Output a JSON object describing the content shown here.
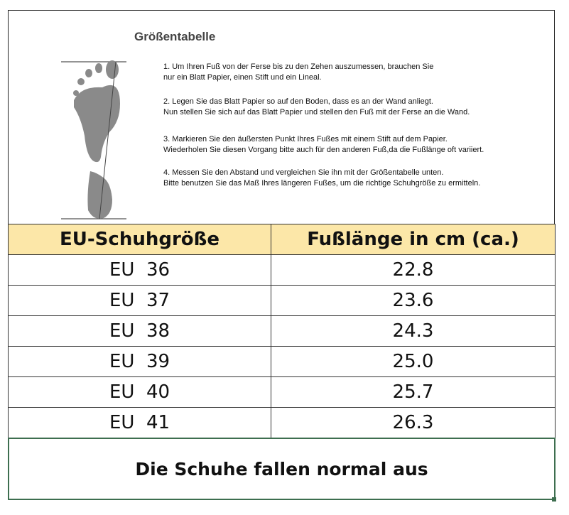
{
  "title": "Größentabelle",
  "instructions": [
    {
      "l1": "1. Um Ihren Fuß von der Ferse bis zu den Zehen auszumessen, brauchen Sie",
      "l2": "nur ein Blatt Papier, einen Stift und ein Lineal."
    },
    {
      "l1": "2. Legen Sie das Blatt Papier so auf den Boden, dass es an der Wand anliegt.",
      "l2": "Nun stellen Sie sich auf das Blatt Papier und stellen den Fuß mit der Ferse an die Wand."
    },
    {
      "l1": "3. Markieren Sie den äußersten Punkt Ihres Fußes mit einem Stift auf dem Papier.",
      "l2": "Wiederholen Sie diesen Vorgang bitte auch für den anderen Fuß,da die Fußlänge oft variiert."
    },
    {
      "l1": "4. Messen Sie den Abstand und vergleichen Sie ihn mit der Größentabelle unten.",
      "l2": "Bitte benutzen Sie das Maß Ihres längeren Fußes, um die richtige Schuhgröße zu ermitteln."
    }
  ],
  "table": {
    "headers": [
      "EU-Schuhgröße",
      "Fußlänge in cm (ca.)"
    ],
    "rows": [
      [
        "EU  36",
        "22.8"
      ],
      [
        "EU  37",
        "23.6"
      ],
      [
        "EU  38",
        "24.3"
      ],
      [
        "EU  39",
        "25.0"
      ],
      [
        "EU  40",
        "25.7"
      ],
      [
        "EU  41",
        "26.3"
      ]
    ]
  },
  "note": "Die Schuhe fallen normal aus",
  "colors": {
    "header_bg": "#fce7a8",
    "note_border": "#3d6e4f",
    "foot": "#8a8a8a"
  }
}
